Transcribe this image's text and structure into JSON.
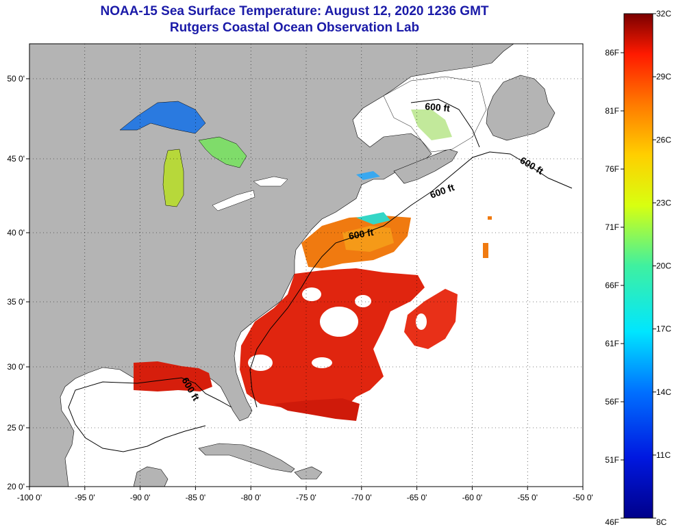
{
  "title": {
    "line1": "NOAA-15 Sea Surface Temperature:  August 12, 2020 1236 GMT",
    "line2": "Rutgers Coastal Ocean Observation Lab"
  },
  "axes": {
    "lon_labels": [
      "-100 0'",
      "-95 0'",
      "-90 0'",
      "-85 0'",
      "-80 0'",
      "-75 0'",
      "-70 0'",
      "-65 0'",
      "-60 0'",
      "-55 0'",
      "-50 0'"
    ],
    "lat_labels": [
      "50 0'",
      "45 0'",
      "40 0'",
      "35 0'",
      "30 0'",
      "25 0'",
      "20 0'"
    ]
  },
  "contour_label": "600 ft",
  "colorbar": {
    "celsius": [
      "32C",
      "29C",
      "26C",
      "23C",
      "20C",
      "17C",
      "14C",
      "11C",
      "8C"
    ],
    "fahrenheit": [
      "86F",
      "81F",
      "76F",
      "71F",
      "66F",
      "61F",
      "56F",
      "51F",
      "46F"
    ]
  },
  "colors": {
    "land": "#b4b4b4",
    "ocean": "#ffffff",
    "title": "#1a1aa8",
    "warm": "#d81e0c",
    "orange": "#f26b12",
    "cool": "#2a6fe0"
  }
}
